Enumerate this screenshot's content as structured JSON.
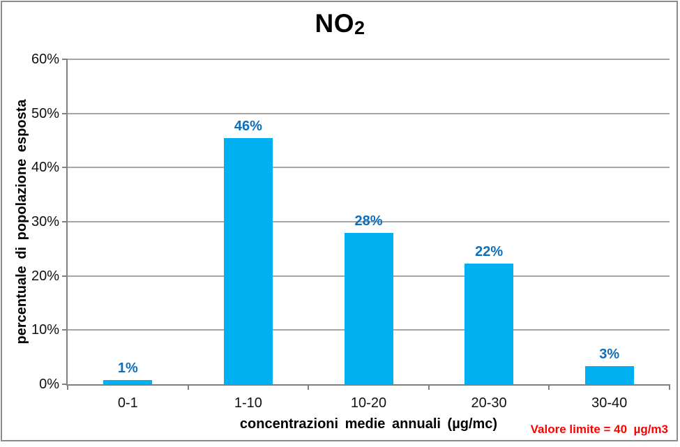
{
  "title": {
    "text": "NO",
    "subscript": "2"
  },
  "chart_data": {
    "type": "bar",
    "title": "NO2",
    "categories": [
      "0-1",
      "1-10",
      "10-20",
      "20-30",
      "30-40"
    ],
    "values": [
      0.8,
      45.5,
      28.0,
      22.3,
      3.3
    ],
    "bar_labels": [
      "1%",
      "46%",
      "28%",
      "22%",
      "3%"
    ],
    "xlabel": "concentrazioni medie annuali (µg/mc)",
    "ylabel": "percentuale di popolazione esposta",
    "ylim": [
      0,
      60
    ],
    "ytick_step": 10,
    "ytick_labels": [
      "0%",
      "10%",
      "20%",
      "30%",
      "40%",
      "50%",
      "60%"
    ],
    "grid": true,
    "legend": false,
    "bar_color": "#00B0F0",
    "bar_label_color": "#0E6FB8"
  },
  "annotation": {
    "text": "Valore limite = 40  µg/m3",
    "color": "#FF0000"
  },
  "colors": {
    "gridline": "#A6A6A6",
    "axis": "#808080",
    "frame_border": "#8C8C8C",
    "text": "#000000"
  }
}
